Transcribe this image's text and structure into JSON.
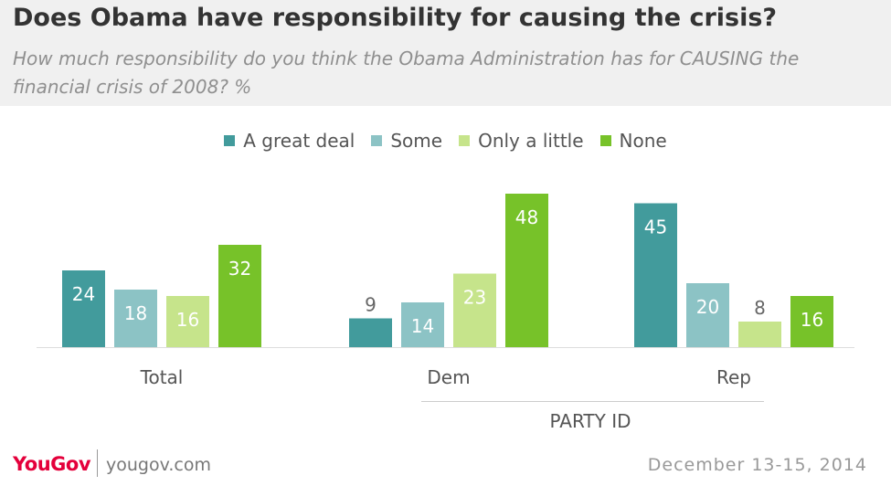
{
  "header": {
    "title": "Does Obama have responsibility for causing the crisis?",
    "subtitle": "How much responsibility do you think the Obama Administration has for CAUSING the financial crisis of 2008? %"
  },
  "footer": {
    "brand": "YouGov",
    "url": "yougov.com",
    "date": "December 13-15, 2014"
  },
  "chart_data": {
    "type": "bar",
    "title": "Does Obama have responsibility for causing the crisis?",
    "subtitle": "How much responsibility do you think the Obama Administration has for CAUSING the financial crisis of 2008? %",
    "categories": [
      "Total",
      "Dem",
      "Rep"
    ],
    "group_label": "PARTY ID",
    "series": [
      {
        "name": "A great deal",
        "color": "#429b9c",
        "values": [
          24,
          9,
          45
        ]
      },
      {
        "name": "Some",
        "color": "#8cc3c5",
        "values": [
          18,
          14,
          20
        ]
      },
      {
        "name": "Only a little",
        "color": "#c6e48b",
        "values": [
          16,
          23,
          8
        ]
      },
      {
        "name": "None",
        "color": "#77c229",
        "values": [
          32,
          48,
          16
        ]
      }
    ],
    "ylim": [
      0,
      48
    ],
    "legend_position": "top-center",
    "grid": false
  }
}
